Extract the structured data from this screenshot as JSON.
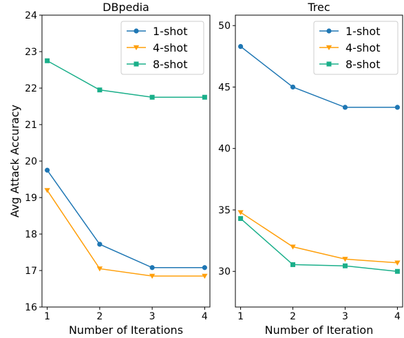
{
  "chart_data": [
    {
      "type": "line",
      "title": "DBpedia",
      "xlabel": "Number of Iterations",
      "ylabel": "Avg Attack Accuracy",
      "x": [
        1,
        2,
        3,
        4
      ],
      "xticks": [
        "1",
        "2",
        "3",
        "4"
      ],
      "yticks": [
        "16",
        "17",
        "18",
        "19",
        "20",
        "21",
        "22",
        "23",
        "24"
      ],
      "xlim": [
        0.9,
        4.1
      ],
      "ylim": [
        16,
        24
      ],
      "legend": "top-right",
      "grid": false,
      "series": [
        {
          "name": "1-shot",
          "values": [
            19.75,
            17.72,
            17.08,
            17.08
          ],
          "color": "#1f77b4",
          "marker": "circle"
        },
        {
          "name": "4-shot",
          "values": [
            19.2,
            17.05,
            16.85,
            16.85
          ],
          "color": "#ff9f0a",
          "marker": "triangle-down"
        },
        {
          "name": "8-shot",
          "values": [
            22.75,
            21.95,
            21.75,
            21.75
          ],
          "color": "#1aaf8a",
          "marker": "square"
        }
      ]
    },
    {
      "type": "line",
      "title": "Trec",
      "xlabel": "Number of Iteration",
      "ylabel": "",
      "x": [
        1,
        2,
        3,
        4
      ],
      "xticks": [
        "1",
        "2",
        "3",
        "4"
      ],
      "yticks": [
        "30",
        "35",
        "40",
        "45",
        "50"
      ],
      "xlim": [
        0.9,
        4.1
      ],
      "ylim": [
        27.1,
        50.85
      ],
      "legend": "top-right",
      "grid": false,
      "series": [
        {
          "name": "1-shot",
          "values": [
            48.3,
            45.0,
            43.35,
            43.35
          ],
          "color": "#1f77b4",
          "marker": "circle"
        },
        {
          "name": "4-shot",
          "values": [
            34.8,
            32.0,
            31.0,
            30.7
          ],
          "color": "#ff9f0a",
          "marker": "triangle-down"
        },
        {
          "name": "8-shot",
          "values": [
            34.3,
            30.55,
            30.45,
            30.0
          ],
          "color": "#1aaf8a",
          "marker": "square"
        }
      ]
    }
  ]
}
